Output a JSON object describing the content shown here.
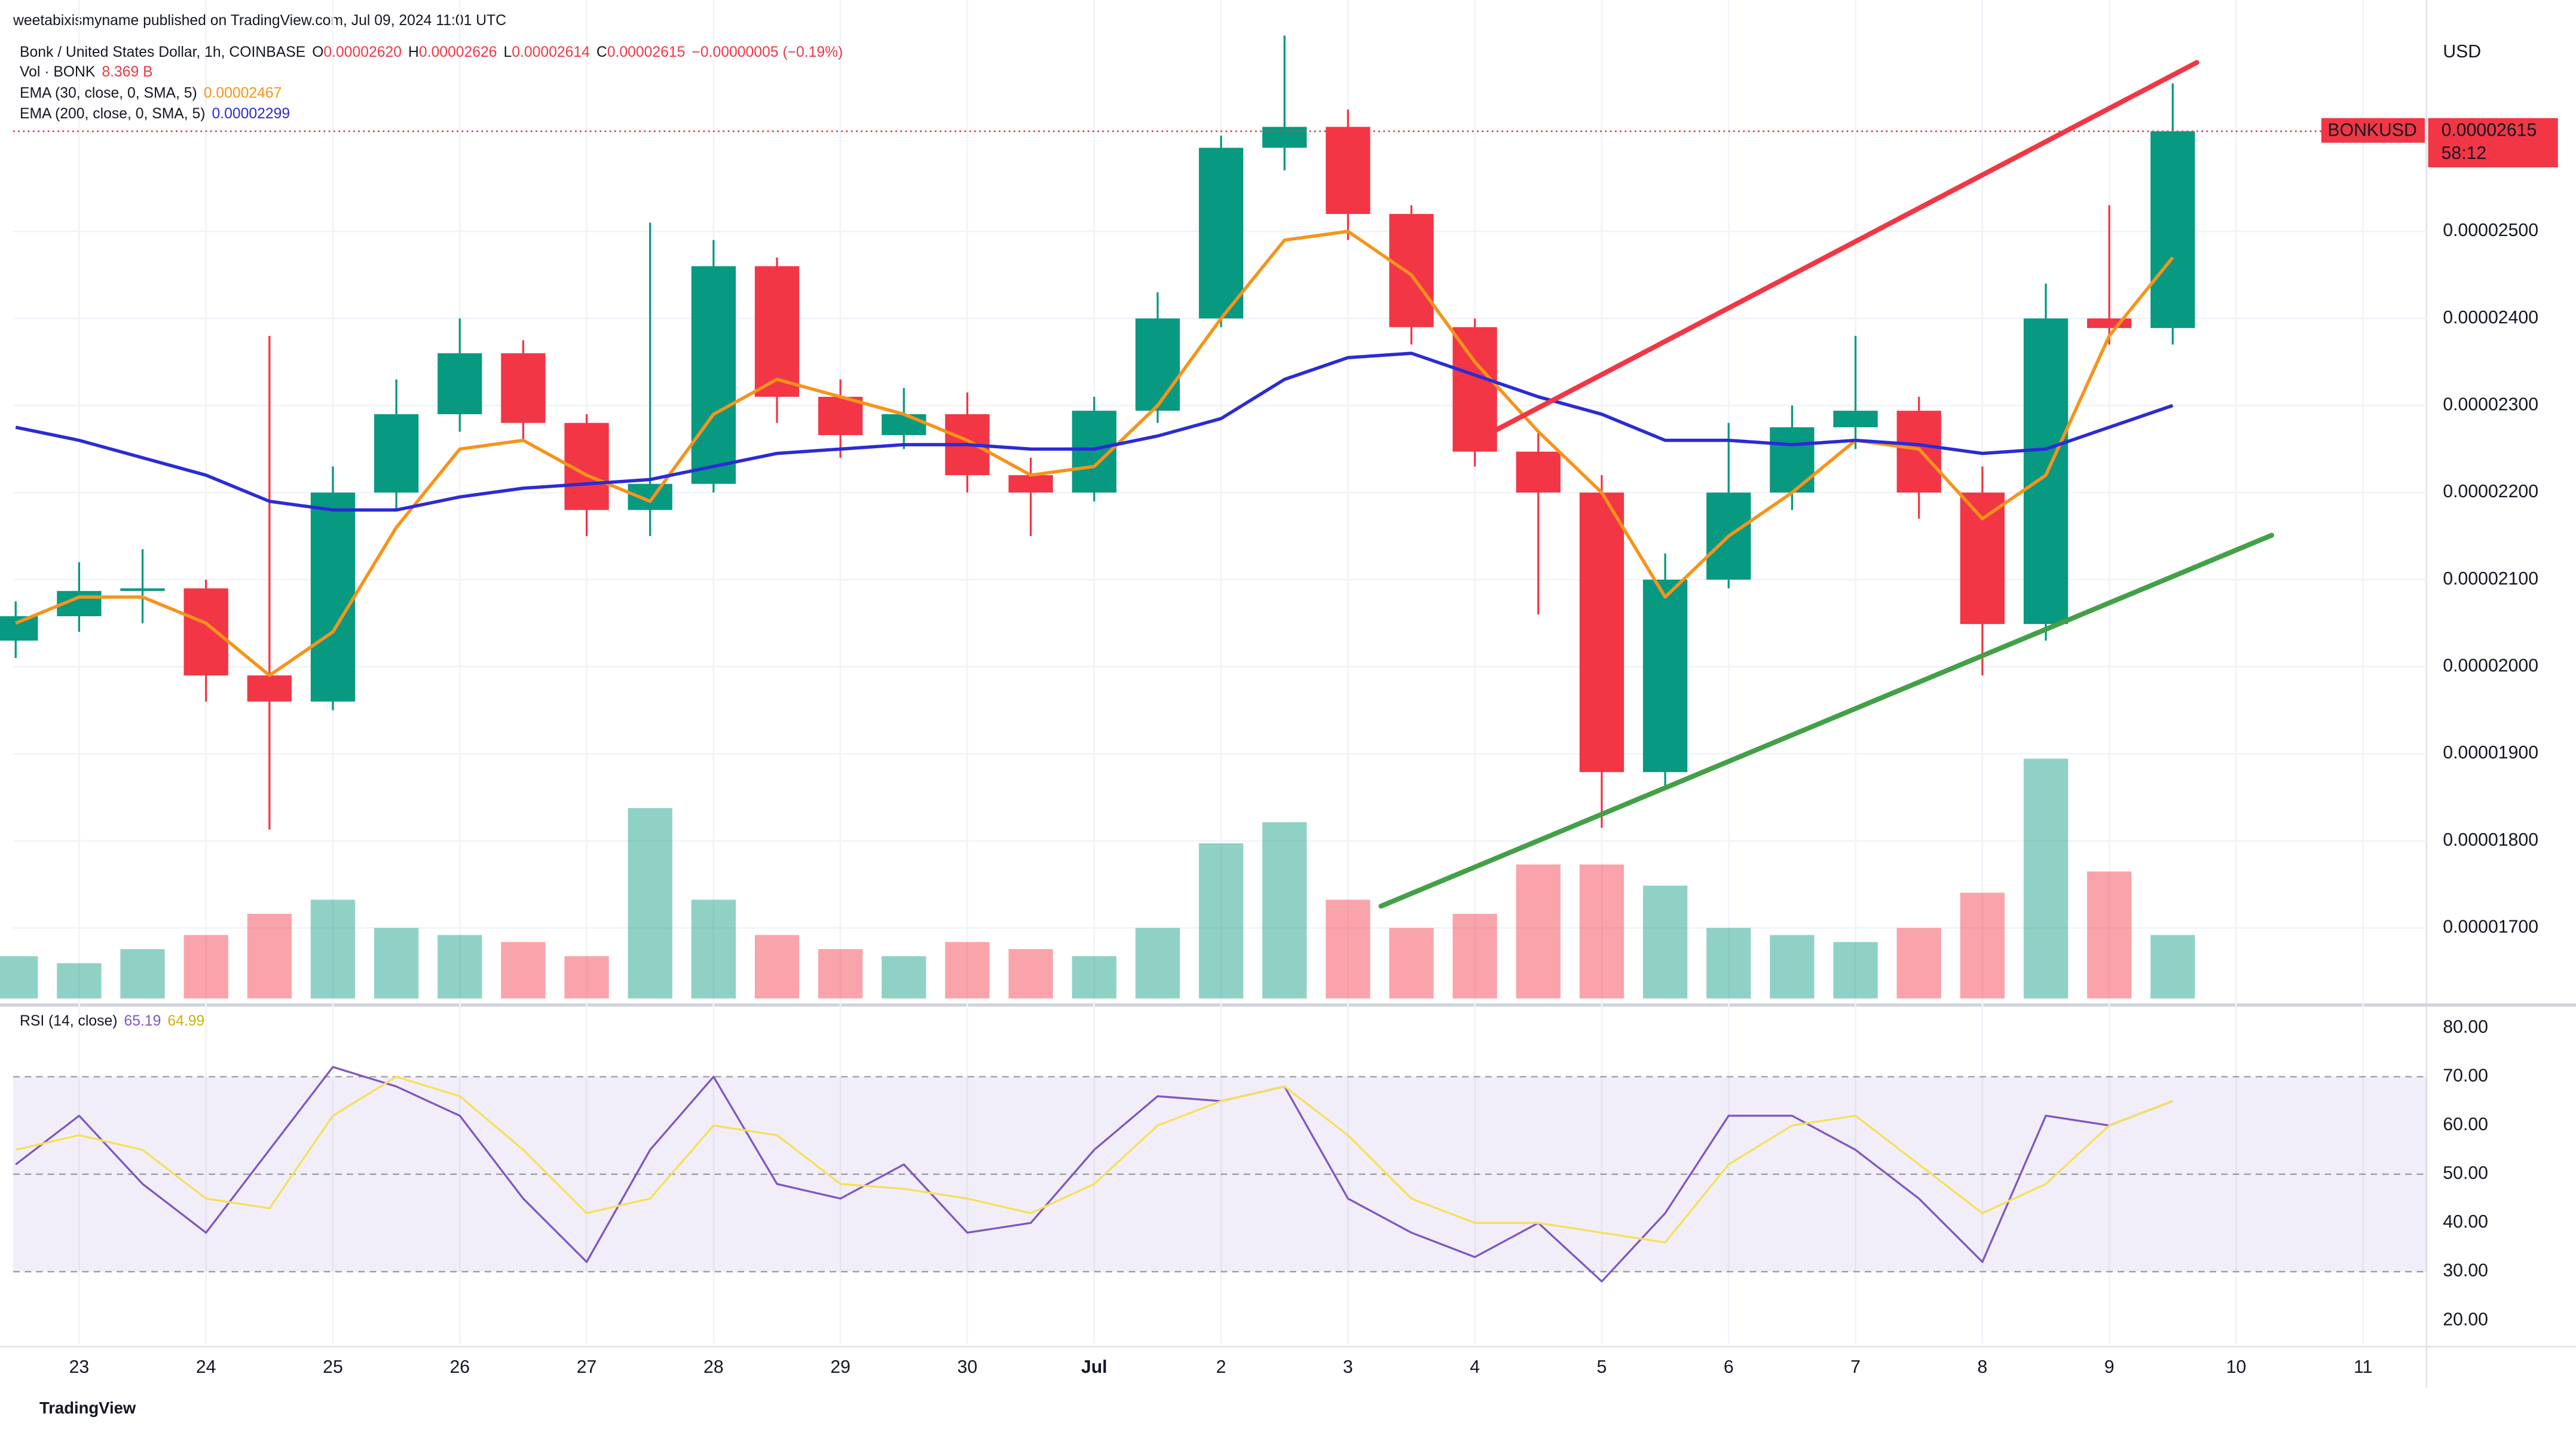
{
  "chart_data": {
    "type": "candlestick",
    "author": "weetabixismyname published on TradingView.com, Jul 09, 2024 11:01 UTC",
    "title": "Bonk / United States Dollar, 1h, COINBASE",
    "ohlc_legend": [
      {
        "label": "O",
        "value": "0.00002620"
      },
      {
        "label": "H",
        "value": "0.00002626"
      },
      {
        "label": "L",
        "value": "0.00002614"
      },
      {
        "label": "C",
        "value": "0.00002615"
      }
    ],
    "change": "−0.00000005 (−0.19%)",
    "currency": "USD",
    "symbol": "BONKUSD",
    "last_price_label": "0.00002615",
    "countdown": "58:12",
    "brand": "TradingView",
    "up_color": "#089981",
    "down_color": "#f23645",
    "x": [
      -0.5,
      0,
      0.5,
      1,
      1.5,
      2,
      2.5,
      3,
      3.5,
      4,
      4.5,
      5,
      5.5,
      6,
      6.5,
      7,
      7.5,
      8,
      8.5,
      9,
      9.5,
      10,
      10.5,
      11,
      11.5,
      12,
      12.5,
      13,
      13.5,
      14,
      14.5,
      15,
      15.5,
      16,
      16.5
    ],
    "xlim": [
      -0.52,
      18.5
    ],
    "xticks": [
      {
        "value": 0,
        "label": "23"
      },
      {
        "value": 1,
        "label": "24"
      },
      {
        "value": 2,
        "label": "25"
      },
      {
        "value": 3,
        "label": "26"
      },
      {
        "value": 4,
        "label": "27"
      },
      {
        "value": 5,
        "label": "28"
      },
      {
        "value": 6,
        "label": "29"
      },
      {
        "value": 7,
        "label": "30"
      },
      {
        "value": 8,
        "label": "Jul"
      },
      {
        "value": 9,
        "label": "2"
      },
      {
        "value": 10,
        "label": "3"
      },
      {
        "value": 11,
        "label": "4"
      },
      {
        "value": 12,
        "label": "5"
      },
      {
        "value": 13,
        "label": "6"
      },
      {
        "value": 14,
        "label": "7"
      },
      {
        "value": 15,
        "label": "8"
      },
      {
        "value": 16,
        "label": "9"
      },
      {
        "value": 17,
        "label": "10"
      },
      {
        "value": 18,
        "label": "11"
      }
    ],
    "ylim": [
      1.619e-05,
      2.728e-05
    ],
    "yticks": [
      {
        "value": 1.7e-05,
        "label": "0.00001700"
      },
      {
        "value": 1.8e-05,
        "label": "0.00001800"
      },
      {
        "value": 1.9e-05,
        "label": "0.00001900"
      },
      {
        "value": 2e-05,
        "label": "0.00002000"
      },
      {
        "value": 2.1e-05,
        "label": "0.00002100"
      },
      {
        "value": 2.2e-05,
        "label": "0.00002200"
      },
      {
        "value": 2.3e-05,
        "label": "0.00002300"
      },
      {
        "value": 2.4e-05,
        "label": "0.00002400"
      },
      {
        "value": 2.5e-05,
        "label": "0.00002500"
      }
    ],
    "open": [
      2.03e-05,
      2.058e-05,
      2.087e-05,
      2.09e-05,
      1.99e-05,
      1.96e-05,
      2.2e-05,
      2.29e-05,
      2.36e-05,
      2.28e-05,
      2.18e-05,
      2.21e-05,
      2.46e-05,
      2.31e-05,
      2.266e-05,
      2.29e-05,
      2.22e-05,
      2.2e-05,
      2.294e-05,
      2.4e-05,
      2.596e-05,
      2.62e-05,
      2.52e-05,
      2.39e-05,
      2.247e-05,
      2.2e-05,
      1.879e-05,
      2.1e-05,
      2.2e-05,
      2.275e-05,
      2.294e-05,
      2.2e-05,
      2.049e-05,
      2.4e-05,
      2.389e-05
    ],
    "high": [
      2.075e-05,
      2.12e-05,
      2.135e-05,
      2.1e-05,
      2.38e-05,
      2.23e-05,
      2.33e-05,
      2.4e-05,
      2.375e-05,
      2.29e-05,
      2.51e-05,
      2.49e-05,
      2.47e-05,
      2.33e-05,
      2.32e-05,
      2.315e-05,
      2.24e-05,
      2.31e-05,
      2.43e-05,
      2.61e-05,
      2.725e-05,
      2.64e-05,
      2.53e-05,
      2.4e-05,
      2.27e-05,
      2.22e-05,
      2.13e-05,
      2.28e-05,
      2.3e-05,
      2.38e-05,
      2.31e-05,
      2.23e-05,
      2.44e-05,
      2.53e-05,
      2.67e-05
    ],
    "low": [
      2.01e-05,
      2.04e-05,
      2.05e-05,
      1.96e-05,
      1.813e-05,
      1.95e-05,
      2.18e-05,
      2.27e-05,
      2.26e-05,
      2.15e-05,
      2.15e-05,
      2.2e-05,
      2.28e-05,
      2.24e-05,
      2.25e-05,
      2.2e-05,
      2.15e-05,
      2.19e-05,
      2.28e-05,
      2.39e-05,
      2.57e-05,
      2.49e-05,
      2.37e-05,
      2.23e-05,
      2.06e-05,
      1.815e-05,
      1.86e-05,
      2.09e-05,
      2.18e-05,
      2.25e-05,
      2.17e-05,
      1.99e-05,
      2.03e-05,
      2.37e-05,
      2.37e-05
    ],
    "close": [
      2.058e-05,
      2.087e-05,
      2.09e-05,
      1.99e-05,
      1.96e-05,
      2.2e-05,
      2.29e-05,
      2.36e-05,
      2.28e-05,
      2.18e-05,
      2.21e-05,
      2.46e-05,
      2.31e-05,
      2.266e-05,
      2.29e-05,
      2.22e-05,
      2.2e-05,
      2.294e-05,
      2.4e-05,
      2.596e-05,
      2.62e-05,
      2.52e-05,
      2.39e-05,
      2.247e-05,
      2.2e-05,
      1.879e-05,
      2.1e-05,
      2.2e-05,
      2.275e-05,
      2.294e-05,
      2.2e-05,
      2.049e-05,
      2.4e-05,
      2.389e-05,
      2.615e-05
    ],
    "volume": {
      "name": "Vol · BONK",
      "last_label": "8.369 B",
      "values": [
        6,
        5,
        7,
        9,
        12,
        14,
        10,
        9,
        8,
        6,
        27,
        14,
        9,
        7,
        6,
        8,
        7,
        6,
        10,
        22,
        25,
        14,
        10,
        12,
        19,
        19,
        16,
        10,
        9,
        8,
        10,
        15,
        34,
        18,
        9
      ]
    },
    "ema": [
      {
        "name": "EMA (30, close, 0, SMA, 5)",
        "last_label": "0.00002467",
        "color": "#f7931a",
        "values": [
          2.05e-05,
          2.08e-05,
          2.08e-05,
          2.05e-05,
          1.99e-05,
          2.04e-05,
          2.16e-05,
          2.25e-05,
          2.26e-05,
          2.22e-05,
          2.19e-05,
          2.29e-05,
          2.33e-05,
          2.31e-05,
          2.29e-05,
          2.26e-05,
          2.22e-05,
          2.23e-05,
          2.3e-05,
          2.4e-05,
          2.49e-05,
          2.5e-05,
          2.45e-05,
          2.35e-05,
          2.27e-05,
          2.2e-05,
          2.08e-05,
          2.15e-05,
          2.2e-05,
          2.26e-05,
          2.25e-05,
          2.17e-05,
          2.22e-05,
          2.38e-05,
          2.47e-05
        ]
      },
      {
        "name": "EMA (200, close, 0, SMA, 5)",
        "last_label": "0.00002299",
        "color": "#2b2bd6",
        "values": [
          2.275e-05,
          2.26e-05,
          2.24e-05,
          2.22e-05,
          2.19e-05,
          2.18e-05,
          2.18e-05,
          2.195e-05,
          2.205e-05,
          2.21e-05,
          2.215e-05,
          2.23e-05,
          2.245e-05,
          2.25e-05,
          2.255e-05,
          2.255e-05,
          2.25e-05,
          2.25e-05,
          2.265e-05,
          2.285e-05,
          2.33e-05,
          2.355e-05,
          2.36e-05,
          2.335e-05,
          2.31e-05,
          2.29e-05,
          2.26e-05,
          2.26e-05,
          2.255e-05,
          2.26e-05,
          2.255e-05,
          2.245e-05,
          2.25e-05,
          2.275e-05,
          2.3e-05
        ]
      }
    ],
    "trendlines": [
      {
        "color": "#f23645",
        "x": [
          10.92,
          16.69
        ],
        "y": [
          2.253e-05,
          2.694e-05
        ]
      },
      {
        "color": "#43a047",
        "x": [
          10.26,
          17.28
        ],
        "y": [
          1.725e-05,
          2.151e-05
        ]
      }
    ],
    "rsi": {
      "name": "RSI (14, close)",
      "value_labels": [
        "65.19",
        "64.99"
      ],
      "ylim": [
        15.3,
        83.7
      ],
      "yticks": [
        {
          "value": 20,
          "label": "20.00"
        },
        {
          "value": 30,
          "label": "30.00"
        },
        {
          "value": 40,
          "label": "40.00"
        },
        {
          "value": 50,
          "label": "50.00"
        },
        {
          "value": 60,
          "label": "60.00"
        },
        {
          "value": 70,
          "label": "70.00"
        },
        {
          "value": 80,
          "label": "80.00"
        }
      ],
      "levels": [
        70,
        50,
        30
      ],
      "series": [
        {
          "color": "#7e57c2",
          "values": [
            52,
            62,
            48,
            38,
            55,
            72,
            68,
            62,
            45,
            32,
            55,
            70,
            48,
            45,
            52,
            38,
            40,
            55,
            66,
            65,
            68,
            45,
            38,
            33,
            40,
            28,
            42,
            62,
            62,
            55,
            45,
            32,
            62,
            60,
            65
          ]
        },
        {
          "color": "#f5e05a",
          "values": [
            55,
            58,
            55,
            45,
            43,
            62,
            70,
            66,
            55,
            42,
            45,
            60,
            58,
            48,
            47,
            45,
            42,
            48,
            60,
            65,
            68,
            58,
            45,
            40,
            40,
            38,
            36,
            52,
            60,
            62,
            52,
            42,
            48,
            60,
            65
          ]
        }
      ]
    }
  }
}
